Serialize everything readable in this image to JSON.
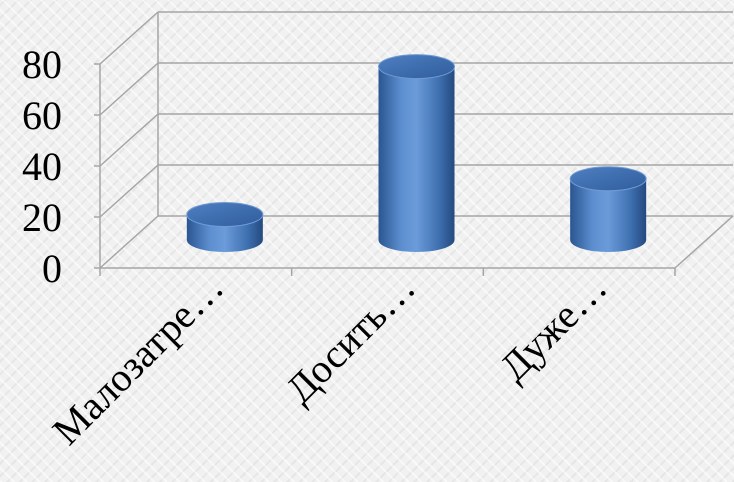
{
  "chart_data": {
    "type": "bar",
    "style": "3d-cylinder",
    "categories": [
      "Малозатре…",
      "Досить…",
      "Дуже…"
    ],
    "values": [
      10,
      68,
      24
    ],
    "ylim": [
      0,
      80
    ],
    "yticks": [
      0,
      20,
      40,
      60,
      80
    ],
    "grid": true,
    "legend": "none",
    "title": "",
    "xlabel": "",
    "ylabel": "",
    "bar_color": "#3f72b8"
  }
}
